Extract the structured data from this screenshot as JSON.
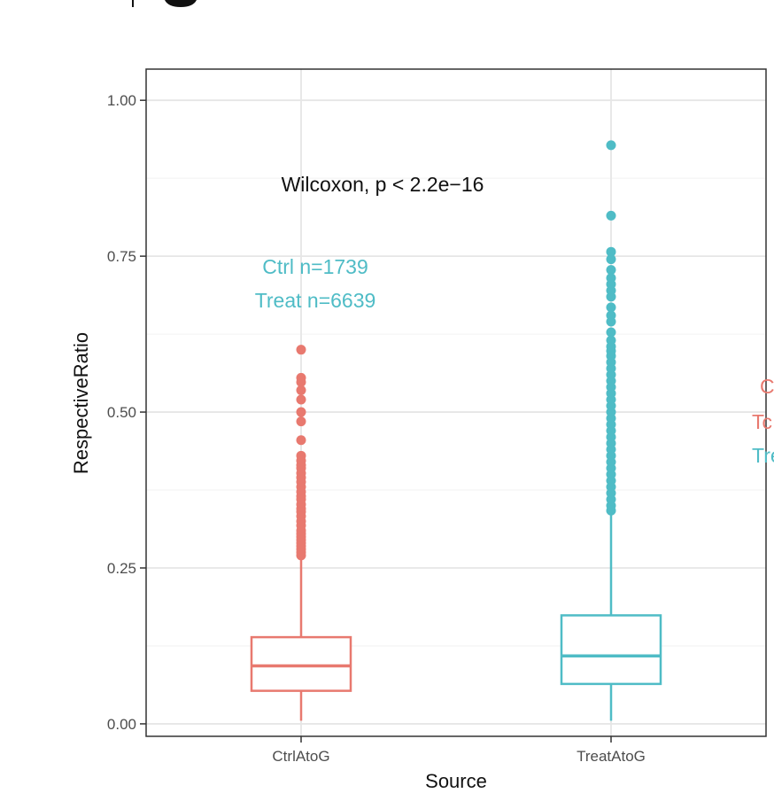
{
  "chart_data": {
    "type": "boxplot",
    "xlabel": "Source",
    "ylabel": "RespectiveRatio",
    "ylim": [
      -0.02,
      1.05
    ],
    "yticks": [
      "0.00",
      "0.25",
      "0.50",
      "0.75",
      "1.00"
    ],
    "grid": true,
    "categories": [
      "CtrlAtoG",
      "TreatAtoG"
    ],
    "colors": {
      "CtrlAtoG": "#e8796f",
      "TreatAtoG": "#4fbcc6"
    },
    "boxes": [
      {
        "category": "CtrlAtoG",
        "whisker_low": 0.005,
        "q1": 0.053,
        "median": 0.093,
        "q3": 0.139,
        "whisker_high": 0.268,
        "outliers": [
          0.6,
          0.555,
          0.548,
          0.535,
          0.52,
          0.5,
          0.485,
          0.455,
          0.43,
          0.422,
          0.415,
          0.41,
          0.402,
          0.395,
          0.388,
          0.38,
          0.372,
          0.365,
          0.36,
          0.352,
          0.345,
          0.34,
          0.333,
          0.325,
          0.318,
          0.31,
          0.305,
          0.3,
          0.295,
          0.29,
          0.285,
          0.28,
          0.275,
          0.27
        ]
      },
      {
        "category": "TreatAtoG",
        "whisker_low": 0.005,
        "q1": 0.064,
        "median": 0.109,
        "q3": 0.174,
        "whisker_high": 0.337,
        "outliers": [
          0.928,
          0.815,
          0.757,
          0.745,
          0.728,
          0.715,
          0.705,
          0.695,
          0.685,
          0.668,
          0.655,
          0.645,
          0.628,
          0.615,
          0.605,
          0.598,
          0.59,
          0.58,
          0.57,
          0.56,
          0.55,
          0.54,
          0.53,
          0.52,
          0.51,
          0.5,
          0.49,
          0.48,
          0.47,
          0.46,
          0.45,
          0.44,
          0.43,
          0.42,
          0.41,
          0.4,
          0.39,
          0.38,
          0.37,
          0.36,
          0.35,
          0.342
        ]
      }
    ],
    "annotations": {
      "test": "Wilcoxon, p < 2.2e−16",
      "n_ctrl": "Ctrl n=1739",
      "n_treat": "Treat n=6639",
      "clipped": [
        "C",
        "Tc",
        "Tre"
      ]
    }
  }
}
